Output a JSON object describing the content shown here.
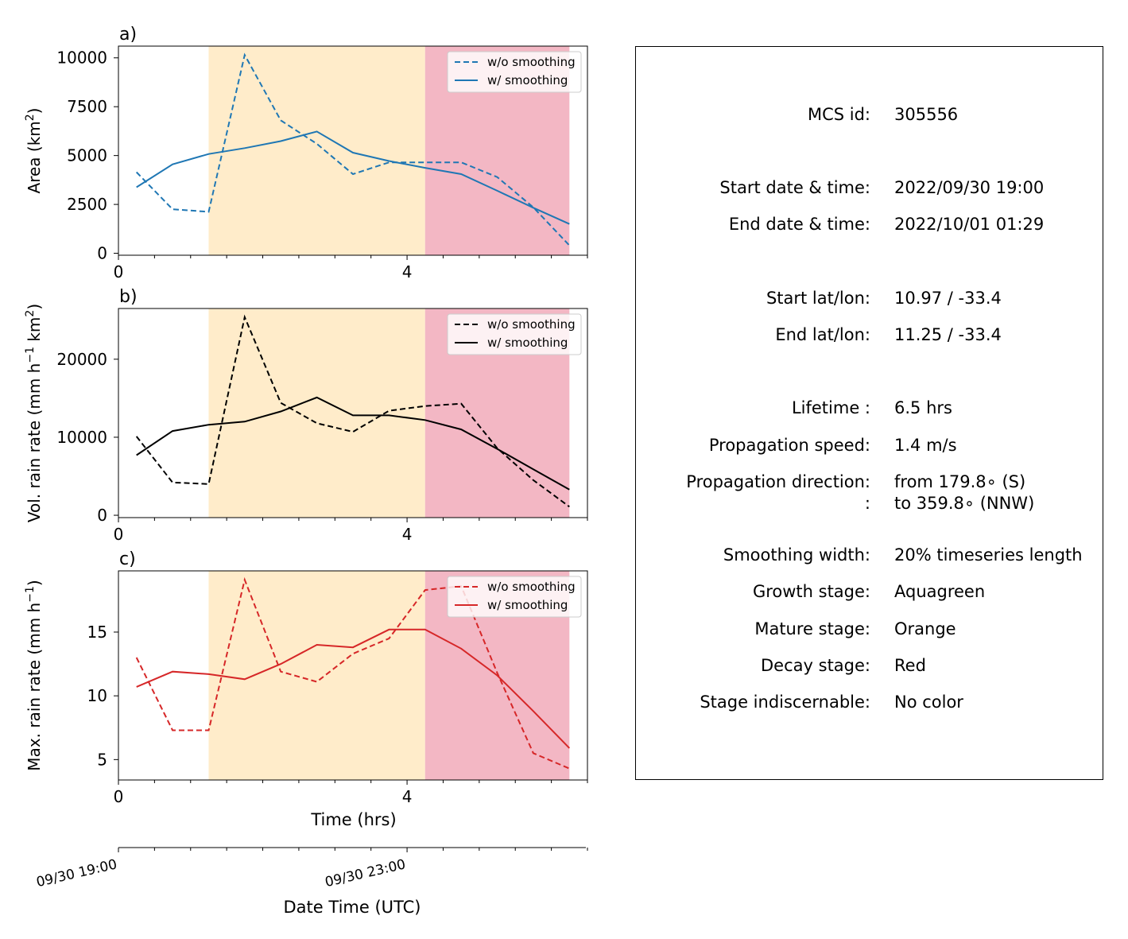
{
  "chart_data": [
    {
      "type": "line",
      "panel_label": "a)",
      "ylabel": "Area  (km",
      "ylabel_sup": "2",
      "ylabel_tail": ")",
      "ylim": [
        -100,
        10600
      ],
      "xlim": [
        0,
        6.5
      ],
      "yticks": [
        0,
        2500,
        5000,
        7500,
        10000
      ],
      "ytick_labels": [
        "0",
        "2500",
        "5000",
        "7500",
        "10000"
      ],
      "xticks": [
        0,
        4
      ],
      "xtick_labels": [
        "0",
        "4"
      ],
      "x": [
        0.25,
        0.75,
        1.25,
        1.75,
        2.25,
        2.75,
        3.25,
        3.75,
        4.25,
        4.75,
        5.25,
        5.75,
        6.25
      ],
      "series": [
        {
          "name": "w/o smoothing",
          "style": "dashed",
          "color": "#1f77b4",
          "values": [
            4150,
            2250,
            2120,
            10150,
            6800,
            5600,
            4050,
            4650,
            4650,
            4650,
            3900,
            2350,
            400
          ]
        },
        {
          "name": "w/ smoothing",
          "style": "solid",
          "color": "#1f77b4",
          "values": [
            3380,
            4550,
            5080,
            5380,
            5740,
            6230,
            5150,
            4720,
            4370,
            4050,
            3200,
            2330,
            1500
          ]
        }
      ],
      "legend": "top-right"
    },
    {
      "type": "line",
      "panel_label": "b)",
      "ylabel": "Vol. rain rate (mm h",
      "ylabel_sup": "−1",
      "ylabel_tail": " km",
      "ylabel_sup2": "2",
      "ylabel_tail2": ")",
      "ylim": [
        -300,
        26500
      ],
      "xlim": [
        0,
        6.5
      ],
      "yticks": [
        0,
        10000,
        20000
      ],
      "ytick_labels": [
        "0",
        "10000",
        "20000"
      ],
      "xticks": [
        0,
        4
      ],
      "xtick_labels": [
        "0",
        "4"
      ],
      "x": [
        0.25,
        0.75,
        1.25,
        1.75,
        2.25,
        2.75,
        3.25,
        3.75,
        4.25,
        4.75,
        5.25,
        5.75,
        6.25
      ],
      "series": [
        {
          "name": "w/o smoothing",
          "style": "dashed",
          "color": "#000000",
          "values": [
            10100,
            4200,
            4000,
            25400,
            14400,
            11800,
            10700,
            13400,
            14000,
            14300,
            8600,
            4500,
            1100
          ]
        },
        {
          "name": "w/ smoothing",
          "style": "solid",
          "color": "#000000",
          "values": [
            7700,
            10800,
            11600,
            12000,
            13300,
            15100,
            12800,
            12800,
            12200,
            11000,
            8500,
            5900,
            3300
          ]
        }
      ],
      "legend": "top-right"
    },
    {
      "type": "line",
      "panel_label": "c)",
      "ylabel": "Max. rain rate  (mm h",
      "ylabel_sup": "−1",
      "ylabel_tail": ")",
      "ylim": [
        3.4,
        19.8
      ],
      "xlim": [
        0,
        6.5
      ],
      "yticks": [
        5,
        10,
        15
      ],
      "ytick_labels": [
        "5",
        "10",
        "15"
      ],
      "xticks": [
        0,
        4
      ],
      "xtick_labels": [
        "0",
        "4"
      ],
      "x": [
        0.25,
        0.75,
        1.25,
        1.75,
        2.25,
        2.75,
        3.25,
        3.75,
        4.25,
        4.75,
        5.25,
        5.75,
        6.25
      ],
      "series": [
        {
          "name": "w/o smoothing",
          "style": "dashed",
          "color": "#d62728",
          "values": [
            13.0,
            7.3,
            7.3,
            19.1,
            11.9,
            11.1,
            13.3,
            14.5,
            18.3,
            18.6,
            11.8,
            5.5,
            4.3
          ]
        },
        {
          "name": "w/ smoothing",
          "style": "solid",
          "color": "#d62728",
          "values": [
            10.7,
            11.9,
            11.7,
            11.3,
            12.5,
            14.0,
            13.8,
            15.2,
            15.2,
            13.7,
            11.6,
            8.8,
            5.9
          ]
        }
      ],
      "legend": "top-right"
    }
  ],
  "stages": {
    "growth": {
      "x_start": 0,
      "x_end": 1.25,
      "color": null
    },
    "mature": {
      "x_start": 1.25,
      "x_end": 4.25,
      "color": "#ffecca"
    },
    "decay": {
      "x_start": 4.25,
      "x_end": 6.25,
      "color": "#f3b7c4"
    }
  },
  "x_axis": {
    "xlabel": "Time (hrs)",
    "minor_tick_step": 0.5
  },
  "date_axis": {
    "label": "Date Time (UTC)",
    "tick_labels": [
      "09/30 19:00",
      "09/30 23:00"
    ],
    "tick_hours": [
      0,
      4
    ]
  },
  "info": {
    "rows": [
      {
        "key": "MCS id:",
        "value": "305556"
      },
      {
        "key": "Start date & time:",
        "value": "2022/09/30 19:00"
      },
      {
        "key": "End date & time:",
        "value": "2022/10/01 01:29"
      },
      {
        "key": "Start lat/lon:",
        "value": "10.97 / -33.4"
      },
      {
        "key": "End lat/lon:",
        "value": "11.25 / -33.4"
      },
      {
        "key": "Lifetime :",
        "value": "6.5 hrs"
      },
      {
        "key": "Propagation speed:",
        "value": "1.4 m/s"
      },
      {
        "key": "Propagation direction:",
        "value": "from 179.8∘ (S)"
      },
      {
        "key": ":",
        "value": "to   359.8∘ (NNW)"
      },
      {
        "key": "Smoothing width:",
        "value": "20% timeseries length"
      },
      {
        "key": "Growth stage:",
        "value": "Aquagreen"
      },
      {
        "key": "Mature stage:",
        "value": "Orange"
      },
      {
        "key": "Decay stage:",
        "value": "Red"
      },
      {
        "key": "Stage indiscernable:",
        "value": "No color"
      }
    ]
  }
}
